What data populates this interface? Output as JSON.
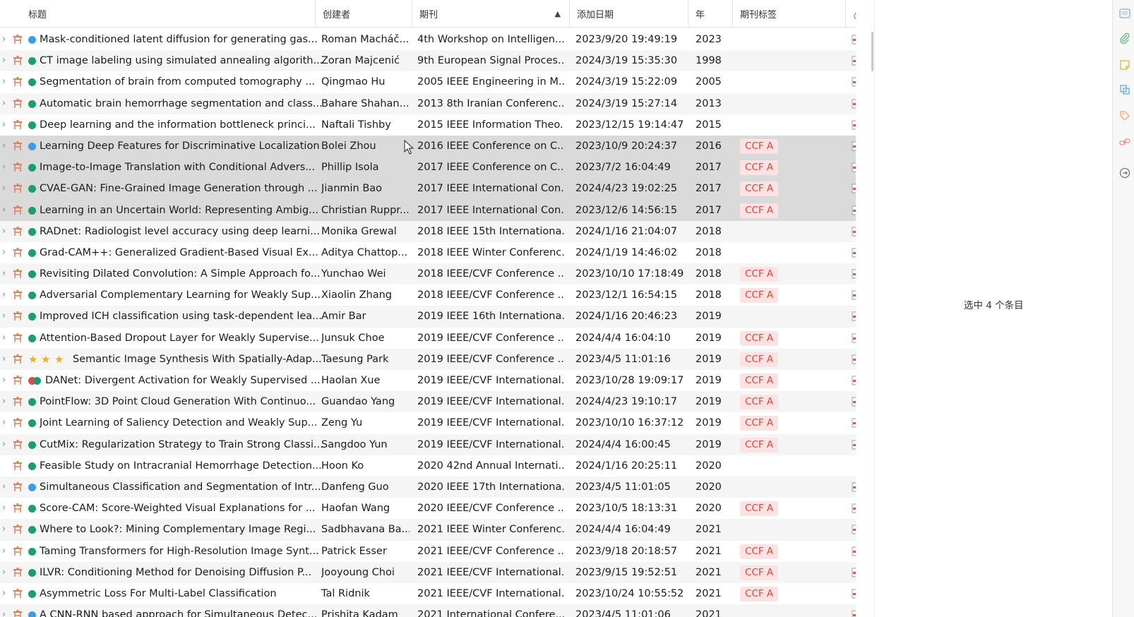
{
  "columns": {
    "title": "标题",
    "creator": "创建者",
    "journal": "期刊",
    "added": "添加日期",
    "year": "年",
    "tags": "期刊标签"
  },
  "items": [
    {
      "title": "Mask-conditioned latent diffusion for generating gas...",
      "creator": "Roman Macháč...",
      "journal": "4th Workshop on Intelligen...",
      "added": "2023/9/20 19:49:19",
      "year": "2023",
      "tag": "",
      "dot": "blue",
      "selected": false
    },
    {
      "title": "CT image labeling using simulated annealing algorith...",
      "creator": "Zoran Majcenić",
      "journal": "9th European Signal Proces...",
      "added": "2024/3/19 15:35:30",
      "year": "1998",
      "tag": "",
      "dot": "green",
      "selected": false
    },
    {
      "title": "Segmentation of brain from computed tomography ...",
      "creator": "Qingmao Hu",
      "journal": "2005 IEEE Engineering in M...",
      "added": "2024/3/19 15:22:09",
      "year": "2005",
      "tag": "",
      "dot": "green",
      "selected": false
    },
    {
      "title": "Automatic brain hemorrhage segmentation and class...",
      "creator": "Bahare Shahan...",
      "journal": "2013 8th Iranian Conferenc...",
      "added": "2024/3/19 15:27:14",
      "year": "2013",
      "tag": "",
      "dot": "green",
      "selected": false
    },
    {
      "title": "Deep learning and the information bottleneck princi...",
      "creator": "Naftali Tishby",
      "journal": "2015 IEEE Information Theo...",
      "added": "2023/12/15 19:14:47",
      "year": "2015",
      "tag": "",
      "dot": "green",
      "selected": false
    },
    {
      "title": "Learning Deep Features for Discriminative Localization",
      "creator": "Bolei Zhou",
      "journal": "2016 IEEE Conference on C...",
      "added": "2023/10/9 20:24:37",
      "year": "2016",
      "tag": "CCF A",
      "dot": "blue",
      "selected": true
    },
    {
      "title": "Image-to-Image Translation with Conditional Advers...",
      "creator": "Phillip Isola",
      "journal": "2017 IEEE Conference on C...",
      "added": "2023/7/2 16:04:49",
      "year": "2017",
      "tag": "CCF A",
      "dot": "green",
      "selected": true
    },
    {
      "title": "CVAE-GAN: Fine-Grained Image Generation through ...",
      "creator": "Jianmin Bao",
      "journal": "2017 IEEE International Con...",
      "added": "2024/4/23 19:02:25",
      "year": "2017",
      "tag": "CCF A",
      "dot": "green",
      "selected": true
    },
    {
      "title": "Learning in an Uncertain World: Representing Ambig...",
      "creator": "Christian Ruppr...",
      "journal": "2017 IEEE International Con...",
      "added": "2023/12/6 14:56:15",
      "year": "2017",
      "tag": "CCF A",
      "dot": "green",
      "selected": true
    },
    {
      "title": "RADnet: Radiologist level accuracy using deep learni...",
      "creator": "Monika Grewal",
      "journal": "2018 IEEE 15th Internationa...",
      "added": "2024/1/16 21:04:07",
      "year": "2018",
      "tag": "",
      "dot": "green",
      "selected": false
    },
    {
      "title": "Grad-CAM++: Generalized Gradient-Based Visual Ex...",
      "creator": "Aditya Chattop...",
      "journal": "2018 IEEE Winter Conferenc...",
      "added": "2024/1/19 14:46:02",
      "year": "2018",
      "tag": "",
      "dot": "green",
      "selected": false
    },
    {
      "title": "Revisiting Dilated Convolution: A Simple Approach fo...",
      "creator": "Yunchao Wei",
      "journal": "2018 IEEE/CVF Conference ...",
      "added": "2023/10/10 17:18:49",
      "year": "2018",
      "tag": "CCF A",
      "dot": "green",
      "selected": false
    },
    {
      "title": "Adversarial Complementary Learning for Weakly Sup...",
      "creator": "Xiaolin Zhang",
      "journal": "2018 IEEE/CVF Conference ...",
      "added": "2023/12/1 16:54:15",
      "year": "2018",
      "tag": "CCF A",
      "dot": "green",
      "selected": false
    },
    {
      "title": "Improved ICH classification using task-dependent lea...",
      "creator": "Amir Bar",
      "journal": "2019 IEEE 16th Internationa...",
      "added": "2024/1/16 20:46:23",
      "year": "2019",
      "tag": "",
      "dot": "green",
      "selected": false
    },
    {
      "title": "Attention-Based Dropout Layer for Weakly Supervise...",
      "creator": "Junsuk Choe",
      "journal": "2019 IEEE/CVF Conference ...",
      "added": "2024/4/4 16:04:10",
      "year": "2019",
      "tag": "CCF A",
      "dot": "green",
      "selected": false
    },
    {
      "title": "Semantic Image Synthesis With Spatially-Adap...",
      "creator": "Taesung Park",
      "journal": "2019 IEEE/CVF Conference ...",
      "added": "2023/4/5 11:01:16",
      "year": "2019",
      "tag": "CCF A",
      "dot": "stars",
      "selected": false
    },
    {
      "title": "DANet: Divergent Activation for Weakly Supervised ...",
      "creator": "Haolan Xue",
      "journal": "2019 IEEE/CVF International...",
      "added": "2023/10/28 19:09:17",
      "year": "2019",
      "tag": "CCF A",
      "dot": "redgreen",
      "selected": false
    },
    {
      "title": "PointFlow: 3D Point Cloud Generation With Continuo...",
      "creator": "Guandao Yang",
      "journal": "2019 IEEE/CVF International...",
      "added": "2024/4/23 19:10:17",
      "year": "2019",
      "tag": "CCF A",
      "dot": "green",
      "selected": false
    },
    {
      "title": "Joint Learning of Saliency Detection and Weakly Sup...",
      "creator": "Zeng Yu",
      "journal": "2019 IEEE/CVF International...",
      "added": "2023/10/10 16:37:12",
      "year": "2019",
      "tag": "CCF A",
      "dot": "green",
      "selected": false
    },
    {
      "title": "CutMix: Regularization Strategy to Train Strong Classi...",
      "creator": "Sangdoo Yun",
      "journal": "2019 IEEE/CVF International...",
      "added": "2024/4/4 16:00:45",
      "year": "2019",
      "tag": "CCF A",
      "dot": "green",
      "selected": false
    },
    {
      "title": "Feasible Study on Intracranial Hemorrhage Detection...",
      "creator": "Hoon Ko",
      "journal": "2020 42nd Annual Internati...",
      "added": "2024/1/16 20:25:11",
      "year": "2020",
      "tag": "",
      "dot": "green",
      "selected": false
    },
    {
      "title": "Simultaneous Classification and Segmentation of Intr...",
      "creator": "Danfeng Guo",
      "journal": "2020 IEEE 17th Internationa...",
      "added": "2023/4/5 11:01:05",
      "year": "2020",
      "tag": "",
      "dot": "blue",
      "selected": false
    },
    {
      "title": "Score-CAM: Score-Weighted Visual Explanations for ...",
      "creator": "Haofan Wang",
      "journal": "2020 IEEE/CVF Conference ...",
      "added": "2023/10/5 18:13:31",
      "year": "2020",
      "tag": "CCF A",
      "dot": "green",
      "selected": false
    },
    {
      "title": "Where to Look?: Mining Complementary Image Regi...",
      "creator": "Sadbhavana Ba...",
      "journal": "2021 IEEE Winter Conferenc...",
      "added": "2024/4/4 16:04:49",
      "year": "2021",
      "tag": "",
      "dot": "green",
      "selected": false
    },
    {
      "title": "Taming Transformers for High-Resolution Image Synt...",
      "creator": "Patrick Esser",
      "journal": "2021 IEEE/CVF Conference ...",
      "added": "2023/9/18 20:18:57",
      "year": "2021",
      "tag": "CCF A",
      "dot": "green",
      "selected": false
    },
    {
      "title": "ILVR: Conditioning Method for Denoising Diffusion P...",
      "creator": "Jooyoung Choi",
      "journal": "2021 IEEE/CVF International...",
      "added": "2023/9/15 19:52:51",
      "year": "2021",
      "tag": "CCF A",
      "dot": "green",
      "selected": false
    },
    {
      "title": "Asymmetric Loss For Multi-Label Classification",
      "creator": "Tal Ridnik",
      "journal": "2021 IEEE/CVF International...",
      "added": "2023/10/24 10:55:52",
      "year": "2021",
      "tag": "CCF A",
      "dot": "green",
      "selected": false
    },
    {
      "title": "A CNN-RNN based approach for Simultaneous Detec...",
      "creator": "Prishita Kadam",
      "journal": "2021 International Confere...",
      "added": "2023/4/5 11:01:06",
      "year": "2021",
      "tag": "",
      "dot": "blue",
      "selected": false
    }
  ],
  "item_pane": {
    "message": "选中 4 个条目"
  },
  "colors": {
    "dot_blue": "#3d9be8",
    "dot_green": "#1a9e6c",
    "dot_red": "#e8484a",
    "star": "#f2b01c",
    "tag_text": "#e0453a",
    "tag_bg": "#fbe3e3",
    "highlight": "#f7d0d6",
    "selected_row": "#dadada"
  }
}
